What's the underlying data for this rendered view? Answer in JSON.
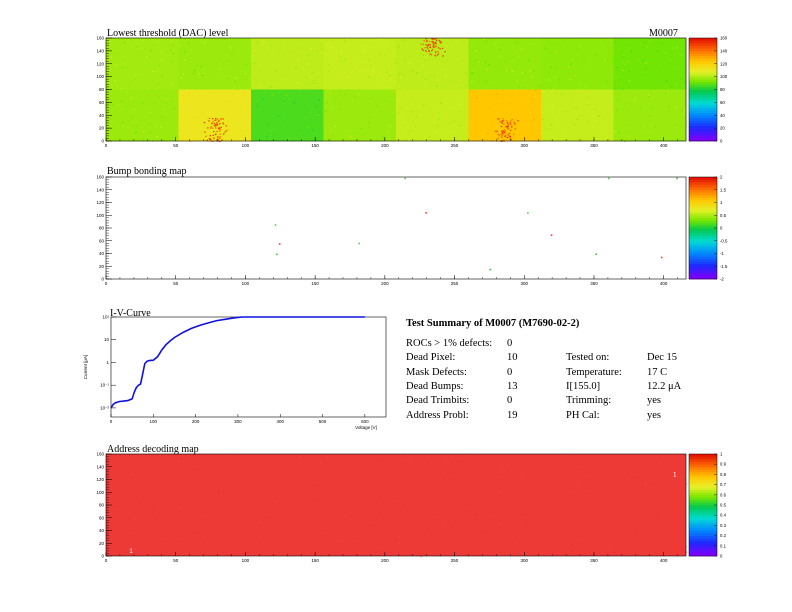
{
  "header": {
    "module_id": "M0007"
  },
  "chart_data": [
    {
      "type": "heatmap",
      "title": "Lowest threshold (DAC) level",
      "xlim": [
        0,
        416
      ],
      "ylim": [
        0,
        160
      ],
      "x_tick_labels": [
        "0",
        "50",
        "100",
        "150",
        "200",
        "250",
        "300",
        "350",
        "400"
      ],
      "y_tick_labels": [
        "0",
        "20",
        "40",
        "60",
        "80",
        "100",
        "120",
        "140",
        "160"
      ],
      "colorbar_labels": [
        "0",
        "20",
        "40",
        "60",
        "80",
        "100",
        "120",
        "140",
        "160"
      ],
      "zlim": [
        0,
        160
      ],
      "roc_grid": {
        "columns": 8,
        "rows": 2
      },
      "roc_mean_values": [
        [
          99,
          98,
          103,
          104,
          103,
          97,
          96,
          92
        ],
        [
          98,
          113,
          87,
          98,
          104,
          125,
          104,
          98
        ]
      ],
      "hotspot_rocs": [
        [
          0,
          4
        ],
        [
          1,
          1
        ],
        [
          1,
          5
        ]
      ]
    },
    {
      "type": "heatmap",
      "title": "Bump bonding map",
      "xlim": [
        0,
        416
      ],
      "ylim": [
        0,
        160
      ],
      "x_tick_labels": [
        "0",
        "50",
        "100",
        "150",
        "200",
        "250",
        "300",
        "350",
        "400"
      ],
      "y_tick_labels": [
        "0",
        "20",
        "40",
        "60",
        "80",
        "100",
        "120",
        "140",
        "160"
      ],
      "colorbar_labels": [
        "-2",
        "-1.5",
        "-1",
        "-0.5",
        "0",
        "0.5",
        "1",
        "1.5",
        "2"
      ],
      "zlim": [
        -2,
        2
      ],
      "dead_bumps": [
        [
          121,
          86
        ],
        [
          124,
          56
        ],
        [
          122,
          40
        ],
        [
          181,
          57
        ],
        [
          229,
          105
        ],
        [
          275,
          16
        ],
        [
          302,
          105
        ],
        [
          319,
          70
        ],
        [
          351,
          40
        ],
        [
          360,
          166
        ],
        [
          398,
          35
        ],
        [
          409,
          161
        ],
        [
          214,
          161
        ]
      ]
    },
    {
      "type": "line",
      "title": "I-V-Curve",
      "xlabel": "Voltage [V]",
      "ylabel": "Current [μA]",
      "xlim": [
        0,
        650
      ],
      "x_tick_labels": [
        "0",
        "100",
        "200",
        "300",
        "400",
        "500",
        "600"
      ],
      "y_tick_labels": [
        "10¹",
        "10",
        "1",
        "10⁻¹",
        "10⁻²"
      ],
      "ylim_log10": [
        -2.4,
        2.0
      ],
      "series": [
        {
          "x": [
            0,
            5,
            10,
            20,
            30,
            40,
            50,
            55,
            60,
            65,
            70,
            75,
            80,
            85,
            90,
            100,
            110,
            120,
            130,
            140,
            150,
            170,
            190,
            210,
            230,
            250,
            270,
            290,
            310,
            330,
            350,
            400,
            450,
            500,
            550,
            600
          ],
          "log10_y": [
            -2.0,
            -1.85,
            -1.78,
            -1.72,
            -1.7,
            -1.68,
            -1.6,
            -1.3,
            -1.1,
            -1.0,
            -0.95,
            -0.5,
            -0.05,
            0.05,
            0.08,
            0.1,
            0.25,
            0.55,
            0.78,
            0.95,
            1.1,
            1.32,
            1.5,
            1.63,
            1.74,
            1.84,
            1.9,
            1.96,
            2.0,
            2.0,
            2.0,
            2.0,
            2.0,
            2.0,
            2.0,
            2.0
          ]
        }
      ]
    },
    {
      "type": "heatmap",
      "title": "Address decoding map",
      "xlim": [
        0,
        416
      ],
      "ylim": [
        0,
        160
      ],
      "x_tick_labels": [
        "0",
        "50",
        "100",
        "150",
        "200",
        "250",
        "300",
        "350",
        "400"
      ],
      "y_tick_labels": [
        "0",
        "20",
        "40",
        "60",
        "80",
        "100",
        "120",
        "140",
        "160"
      ],
      "colorbar_labels": [
        "0",
        "0.1",
        "0.2",
        "0.3",
        "0.4",
        "0.5",
        "0.6",
        "0.7",
        "0.8",
        "0.9",
        "1"
      ],
      "zlim": [
        0,
        1
      ],
      "bad_pixel_labels": [
        {
          "x": 18,
          "y": 5,
          "text": "1"
        },
        {
          "x": 408,
          "y": 125,
          "text": "1"
        }
      ]
    }
  ],
  "summary": {
    "title": "Test Summary of M0007 (M7690-02-2)",
    "rows": [
      {
        "label": "ROCs > 1% defects:",
        "value": "0",
        "label2": "",
        "value2": ""
      },
      {
        "label": "Dead Pixel:",
        "value": "10",
        "label2": "Tested on:",
        "value2": "Dec 15"
      },
      {
        "label": "Mask Defects:",
        "value": "0",
        "label2": "Temperature:",
        "value2": "17 C"
      },
      {
        "label": "Dead Bumps:",
        "value": "13",
        "label2": "I[155.0]",
        "value2": "12.2 μA"
      },
      {
        "label": "Dead Trimbits:",
        "value": "0",
        "label2": "Trimming:",
        "value2": "yes"
      },
      {
        "label": "Address Probl:",
        "value": "19",
        "label2": "PH Cal:",
        "value2": "yes"
      }
    ]
  }
}
